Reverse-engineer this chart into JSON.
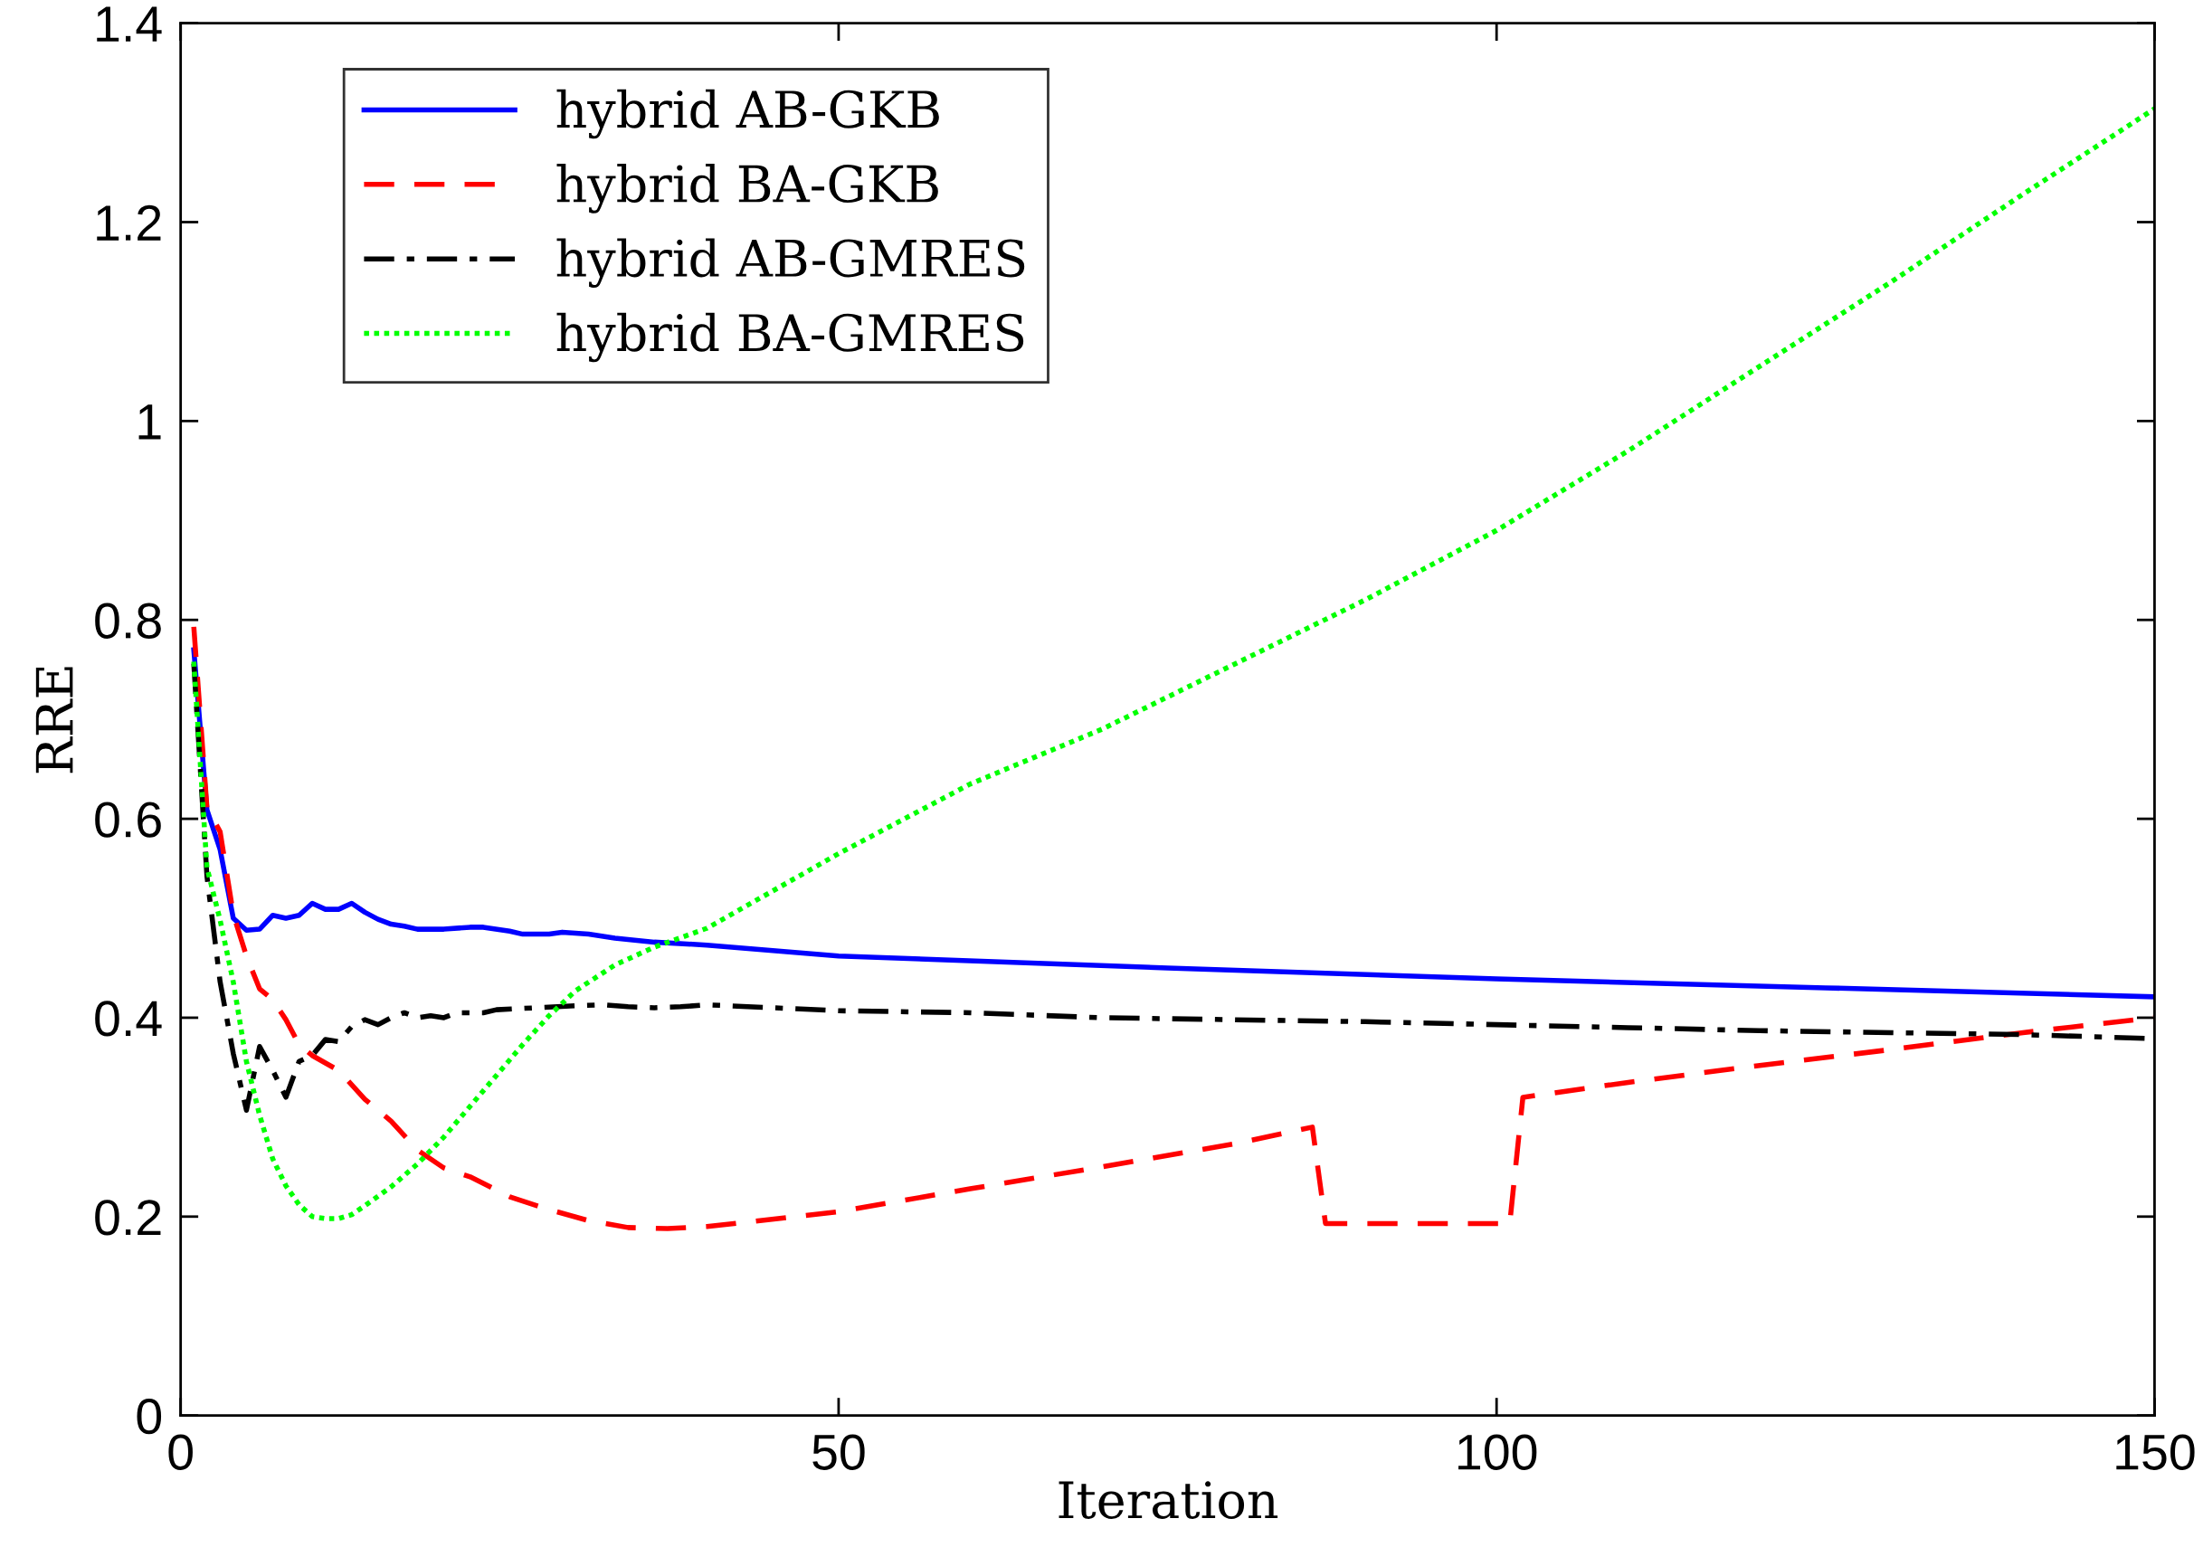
{
  "chart_data": {
    "type": "line",
    "xlabel": "Iteration",
    "ylabel": "RRE",
    "xlim": [
      0,
      150
    ],
    "ylim": [
      0,
      1.4
    ],
    "xticks": [
      0,
      50,
      100,
      150
    ],
    "yticks": [
      0,
      0.2,
      0.4,
      0.6,
      0.8,
      1,
      1.2,
      1.4
    ],
    "grid": false,
    "legend": "top left",
    "marker": "none",
    "series": [
      {
        "name": "hybrid AB-GKB",
        "color": "#0000ff",
        "line_style": "solid",
        "x": [
          1,
          2,
          3,
          4,
          5,
          6,
          7,
          8,
          9,
          10,
          11,
          12,
          13,
          14,
          15,
          16,
          17,
          18,
          20,
          22,
          23,
          25,
          26,
          28,
          29,
          31,
          33,
          36,
          40,
          50,
          75,
          100,
          125,
          150
        ],
        "values": [
          0.77,
          0.609,
          0.569,
          0.5,
          0.488,
          0.489,
          0.503,
          0.5,
          0.503,
          0.515,
          0.509,
          0.509,
          0.515,
          0.506,
          0.499,
          0.494,
          0.492,
          0.489,
          0.489,
          0.491,
          0.491,
          0.487,
          0.484,
          0.484,
          0.486,
          0.484,
          0.48,
          0.476,
          0.473,
          0.462,
          0.45,
          0.439,
          0.43,
          0.421
        ]
      },
      {
        "name": "hybrid BA-GKB",
        "color": "#ff0000",
        "line_style": "dashed",
        "x": [
          1,
          2,
          3,
          4,
          5,
          6,
          7,
          8,
          9,
          10,
          12,
          14,
          16,
          18,
          20,
          22,
          25,
          28,
          31,
          34,
          37,
          40,
          50,
          60,
          70,
          80,
          86,
          87,
          101,
          102,
          110,
          120,
          130,
          140,
          150
        ],
        "values": [
          0.793,
          0.611,
          0.587,
          0.504,
          0.462,
          0.429,
          0.418,
          0.398,
          0.373,
          0.362,
          0.347,
          0.318,
          0.296,
          0.267,
          0.249,
          0.24,
          0.22,
          0.207,
          0.196,
          0.189,
          0.188,
          0.19,
          0.205,
          0.228,
          0.25,
          0.273,
          0.29,
          0.193,
          0.193,
          0.32,
          0.335,
          0.352,
          0.368,
          0.385,
          0.4
        ]
      },
      {
        "name": "hybrid AB-GMRES",
        "color": "#000000",
        "line_style": "dashdot",
        "x": [
          1,
          2,
          3,
          4,
          5,
          6,
          7,
          8,
          9,
          10,
          11,
          12,
          13,
          14,
          15,
          16,
          17,
          18,
          19,
          20,
          21,
          23,
          24,
          27,
          30,
          32,
          34,
          36,
          38,
          40,
          50,
          60,
          70,
          80,
          90,
          100,
          110,
          120,
          130,
          140,
          150
        ],
        "values": [
          0.756,
          0.542,
          0.436,
          0.364,
          0.307,
          0.371,
          0.347,
          0.32,
          0.356,
          0.362,
          0.378,
          0.376,
          0.391,
          0.398,
          0.393,
          0.4,
          0.405,
          0.4,
          0.402,
          0.4,
          0.405,
          0.405,
          0.408,
          0.41,
          0.412,
          0.413,
          0.411,
          0.41,
          0.411,
          0.413,
          0.407,
          0.405,
          0.4,
          0.398,
          0.396,
          0.393,
          0.39,
          0.387,
          0.385,
          0.383,
          0.379
        ]
      },
      {
        "name": "hybrid BA-GMRES",
        "color": "#00ff00",
        "line_style": "dotted",
        "x": [
          1,
          2,
          3,
          4,
          5,
          6,
          7,
          8,
          9,
          10,
          11,
          12,
          13,
          14,
          16,
          18,
          20,
          22,
          24,
          26,
          28,
          30,
          33,
          36,
          40,
          50,
          60,
          70,
          80,
          90,
          100,
          110,
          120,
          130,
          140,
          150
        ],
        "values": [
          0.758,
          0.551,
          0.498,
          0.436,
          0.356,
          0.302,
          0.258,
          0.231,
          0.212,
          0.2,
          0.198,
          0.198,
          0.202,
          0.211,
          0.23,
          0.253,
          0.28,
          0.311,
          0.342,
          0.373,
          0.402,
          0.427,
          0.453,
          0.471,
          0.49,
          0.565,
          0.635,
          0.69,
          0.755,
          0.82,
          0.89,
          0.97,
          1.055,
          1.14,
          1.228,
          1.314
        ]
      }
    ]
  }
}
